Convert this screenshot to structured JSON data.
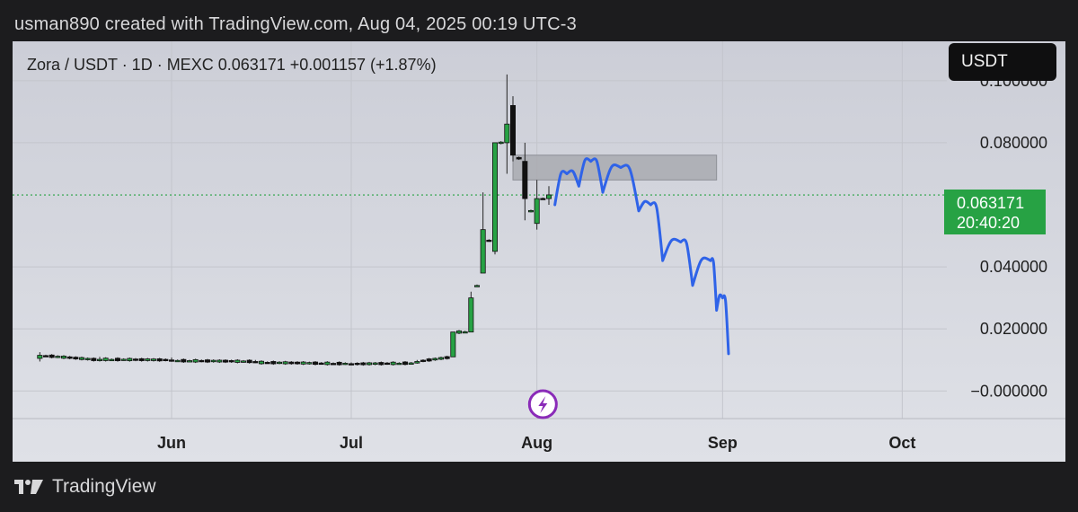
{
  "caption": "usman890 created with TradingView.com, Aug 04, 2025 00:19 UTC-3",
  "symbol_line": "Zora / USDT · 1D · MEXC  0.063171  +0.001157 (+1.87%)",
  "currency_label": "USDT",
  "price_tag": {
    "price": "0.063171",
    "countdown": "20:40:20"
  },
  "brand": "TradingView",
  "icon": "lightning-icon",
  "colors": {
    "up": "#27a244",
    "down": "#111111",
    "projection": "#2f63e8",
    "zone": "#a9aab0",
    "last_price_line": "#27a244"
  },
  "chart_data": {
    "type": "candlestick",
    "x_ticks": [
      "Jun",
      "Jul",
      "Aug",
      "Sep",
      "Oct"
    ],
    "y_ticks": [
      "0.100000",
      "0.080000",
      "0.040000",
      "0.020000",
      "−0.000000"
    ],
    "y_tick_values": [
      0.1,
      0.08,
      0.04,
      0.02,
      -0.0
    ],
    "y_range": [
      -0.006,
      0.104
    ],
    "last_price": 0.063171,
    "resistance_zone": {
      "from": "2025-07-28",
      "to": "2025-08-31",
      "low": 0.068,
      "high": 0.076
    },
    "candles_summary": [
      {
        "date": "2025-05-10",
        "o": 0.0105,
        "h": 0.0125,
        "l": 0.0095,
        "c": 0.0115
      },
      {
        "date": "2025-05-20",
        "o": 0.01,
        "h": 0.011,
        "l": 0.0095,
        "c": 0.0102
      },
      {
        "date": "2025-06-01",
        "o": 0.01,
        "h": 0.0108,
        "l": 0.0094,
        "c": 0.0098
      },
      {
        "date": "2025-06-15",
        "o": 0.0095,
        "h": 0.01,
        "l": 0.009,
        "c": 0.0092
      },
      {
        "date": "2025-07-01",
        "o": 0.0088,
        "h": 0.0092,
        "l": 0.0085,
        "c": 0.0087
      },
      {
        "date": "2025-07-12",
        "o": 0.009,
        "h": 0.01,
        "l": 0.0088,
        "c": 0.0095
      },
      {
        "date": "2025-07-18",
        "o": 0.011,
        "h": 0.015,
        "l": 0.011,
        "c": 0.019
      },
      {
        "date": "2025-07-21",
        "o": 0.019,
        "h": 0.032,
        "l": 0.02,
        "c": 0.03
      },
      {
        "date": "2025-07-23",
        "o": 0.038,
        "h": 0.064,
        "l": 0.038,
        "c": 0.052
      },
      {
        "date": "2025-07-25",
        "o": 0.045,
        "h": 0.08,
        "l": 0.044,
        "c": 0.08
      },
      {
        "date": "2025-07-27",
        "o": 0.08,
        "h": 0.102,
        "l": 0.07,
        "c": 0.086
      },
      {
        "date": "2025-07-28",
        "o": 0.092,
        "h": 0.095,
        "l": 0.074,
        "c": 0.076
      },
      {
        "date": "2025-07-30",
        "o": 0.074,
        "h": 0.08,
        "l": 0.055,
        "c": 0.062
      },
      {
        "date": "2025-08-01",
        "o": 0.054,
        "h": 0.068,
        "l": 0.052,
        "c": 0.062
      },
      {
        "date": "2025-08-03",
        "o": 0.062,
        "h": 0.066,
        "l": 0.06,
        "c": 0.0632
      }
    ],
    "projection_path_values": [
      {
        "date": "2025-08-04",
        "v": 0.06
      },
      {
        "date": "2025-08-06",
        "v": 0.07
      },
      {
        "date": "2025-08-08",
        "v": 0.066
      },
      {
        "date": "2025-08-10",
        "v": 0.074
      },
      {
        "date": "2025-08-12",
        "v": 0.064
      },
      {
        "date": "2025-08-15",
        "v": 0.072
      },
      {
        "date": "2025-08-18",
        "v": 0.058
      },
      {
        "date": "2025-08-20",
        "v": 0.06
      },
      {
        "date": "2025-08-22",
        "v": 0.042
      },
      {
        "date": "2025-08-25",
        "v": 0.048
      },
      {
        "date": "2025-08-27",
        "v": 0.034
      },
      {
        "date": "2025-08-30",
        "v": 0.042
      },
      {
        "date": "2025-08-31",
        "v": 0.026
      },
      {
        "date": "2025-09-01",
        "v": 0.03
      },
      {
        "date": "2025-09-02",
        "v": 0.012
      }
    ]
  }
}
